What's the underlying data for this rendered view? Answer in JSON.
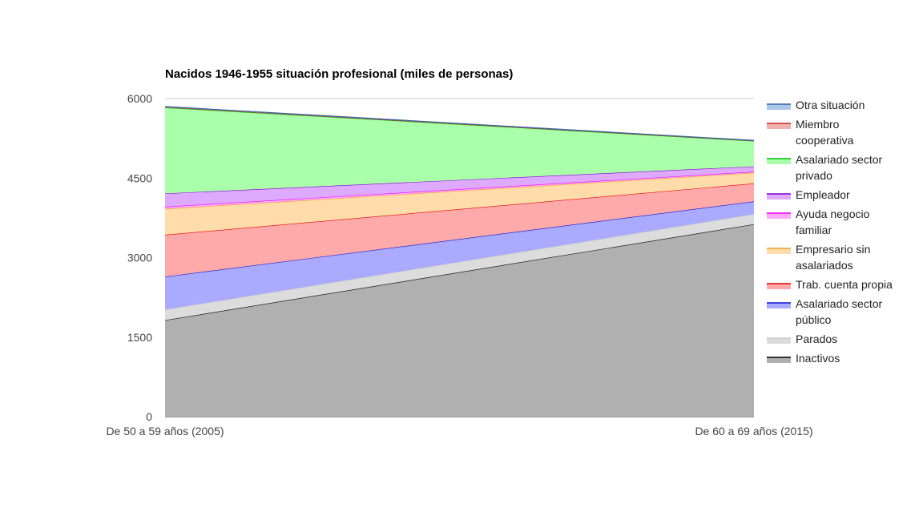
{
  "chart_data": {
    "type": "area",
    "stacked": true,
    "title": "Nacidos 1946-1955 situación profesional (miles de personas)",
    "xlabel": "",
    "ylabel": "",
    "categories": [
      "De 50 a 59 años (2005)",
      "De 60 a 69 años (2015)"
    ],
    "ylim": [
      0,
      6000
    ],
    "yticks": [
      0,
      1500,
      3000,
      4500,
      6000
    ],
    "grid": true,
    "legend_position": "right",
    "series": [
      {
        "name": "Inactivos",
        "values": [
          1820,
          3630
        ],
        "color": "#000000",
        "fill": "#b0b0b0"
      },
      {
        "name": "Parados",
        "values": [
          200,
          190
        ],
        "color": "#c8c8c8",
        "fill": "#dcdcdc"
      },
      {
        "name": "Asalariado sector público",
        "values": [
          620,
          240
        ],
        "color": "#1010d0",
        "fill": "#aaaaff"
      },
      {
        "name": "Trab. cuenta propia",
        "values": [
          790,
          340
        ],
        "color": "#dd0000",
        "fill": "#ffaaaa"
      },
      {
        "name": "Empresario sin asalariados",
        "values": [
          490,
          200
        ],
        "color": "#f0a030",
        "fill": "#ffdcaa"
      },
      {
        "name": "Ayuda negocio familiar",
        "values": [
          40,
          20
        ],
        "color": "#ee00ee",
        "fill": "#ffaaff"
      },
      {
        "name": "Empleador",
        "values": [
          250,
          100
        ],
        "color": "#8000d0",
        "fill": "#ddaaff"
      },
      {
        "name": "Asalariado sector privado",
        "values": [
          1620,
          480
        ],
        "color": "#00bb00",
        "fill": "#aaffaa"
      },
      {
        "name": "Miembro cooperativa",
        "values": [
          10,
          5
        ],
        "color": "#cc2222",
        "fill": "#f0b0b0"
      },
      {
        "name": "Otra situación",
        "values": [
          10,
          5
        ],
        "color": "#3366aa",
        "fill": "#aac8e8"
      }
    ]
  }
}
